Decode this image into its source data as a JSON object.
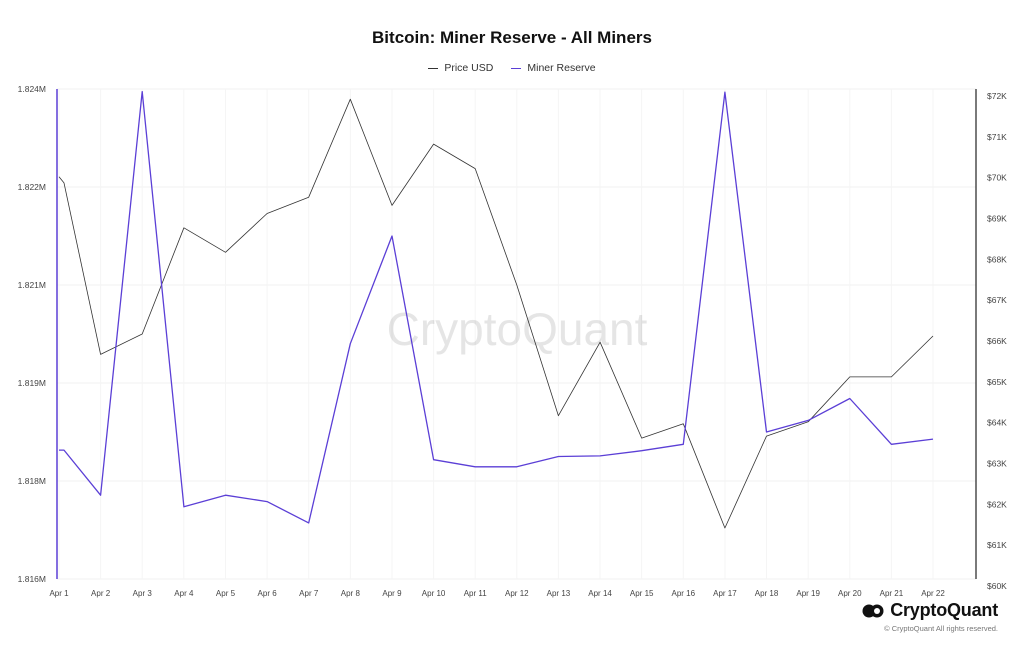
{
  "chart_data": {
    "type": "line",
    "title": "Bitcoin: Miner Reserve - All Miners",
    "categories": [
      "Apr 1",
      "Apr 2",
      "Apr 3",
      "Apr 4",
      "Apr 5",
      "Apr 6",
      "Apr 7",
      "Apr 8",
      "Apr 9",
      "Apr 10",
      "Apr 11",
      "Apr 12",
      "Apr 13",
      "Apr 14",
      "Apr 15",
      "Apr 16",
      "Apr 17",
      "Apr 18",
      "Apr 19",
      "Apr 20",
      "Apr 21",
      "Apr 22"
    ],
    "y_left": {
      "ticks": [
        "1.824M",
        "1.822M",
        "1.821M",
        "1.819M",
        "1.818M",
        "1.816M"
      ],
      "ylim": [
        1.8162,
        1.8238
      ]
    },
    "y_right": {
      "ticks": [
        "$72K",
        "$71K",
        "$70K",
        "$69K",
        "$68K",
        "$67K",
        "$66K",
        "$65K",
        "$64K",
        "$63K",
        "$62K",
        "$61K",
        "$60K"
      ],
      "ylim": [
        60000,
        72000
      ]
    },
    "series": [
      {
        "name": "Price USD",
        "color": "#333333",
        "axis": "right",
        "points": [
          {
            "x": 0.0,
            "y": 69850
          },
          {
            "x": 0.12,
            "y": 69700
          },
          {
            "x": 1,
            "y": 65500
          },
          {
            "x": 2,
            "y": 66000
          },
          {
            "x": 3,
            "y": 68600
          },
          {
            "x": 4,
            "y": 68000
          },
          {
            "x": 5,
            "y": 68950
          },
          {
            "x": 6,
            "y": 69350
          },
          {
            "x": 7,
            "y": 71750
          },
          {
            "x": 8,
            "y": 69150
          },
          {
            "x": 9,
            "y": 70650
          },
          {
            "x": 10,
            "y": 70050
          },
          {
            "x": 11,
            "y": 67200
          },
          {
            "x": 12,
            "y": 64000
          },
          {
            "x": 13,
            "y": 65800
          },
          {
            "x": 14,
            "y": 63450
          },
          {
            "x": 15,
            "y": 63800
          },
          {
            "x": 16,
            "y": 61250
          },
          {
            "x": 17,
            "y": 63500
          },
          {
            "x": 18,
            "y": 63850
          },
          {
            "x": 19,
            "y": 64950
          },
          {
            "x": 20,
            "y": 64950
          },
          {
            "x": 21,
            "y": 65950
          }
        ]
      },
      {
        "name": "Miner Reserve",
        "color": "#5b3fd6",
        "axis": "left",
        "points": [
          {
            "x": 0.0,
            "y": 1.8182
          },
          {
            "x": 0.12,
            "y": 1.8182
          },
          {
            "x": 1,
            "y": 1.8175
          },
          {
            "x": 2,
            "y": 1.82376
          },
          {
            "x": 3,
            "y": 1.81732
          },
          {
            "x": 4,
            "y": 1.8175
          },
          {
            "x": 5,
            "y": 1.8174
          },
          {
            "x": 6,
            "y": 1.81707
          },
          {
            "x": 7,
            "y": 1.81985
          },
          {
            "x": 8,
            "y": 1.82152
          },
          {
            "x": 9,
            "y": 1.81805
          },
          {
            "x": 10,
            "y": 1.81794
          },
          {
            "x": 11,
            "y": 1.81794
          },
          {
            "x": 12,
            "y": 1.8181
          },
          {
            "x": 13,
            "y": 1.81811
          },
          {
            "x": 14,
            "y": 1.81819
          },
          {
            "x": 15,
            "y": 1.81829
          },
          {
            "x": 16,
            "y": 1.82375
          },
          {
            "x": 17,
            "y": 1.81848
          },
          {
            "x": 18,
            "y": 1.81866
          },
          {
            "x": 19,
            "y": 1.819
          },
          {
            "x": 20,
            "y": 1.81829
          },
          {
            "x": 21,
            "y": 1.81837
          }
        ]
      }
    ],
    "grid": true,
    "legend_position": "top-center"
  },
  "watermark": "CryptoQuant",
  "brand": {
    "name": "CryptoQuant",
    "icon": "cryptoquant-logo-icon"
  },
  "copyright": "© CryptoQuant All rights reserved."
}
